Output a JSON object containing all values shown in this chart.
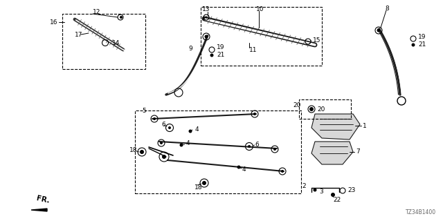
{
  "diagram_code": "TZ34B1400",
  "background_color": "#ffffff",
  "line_color": "#1a1a1a",
  "fig_width": 6.4,
  "fig_height": 3.2,
  "dpi": 100
}
